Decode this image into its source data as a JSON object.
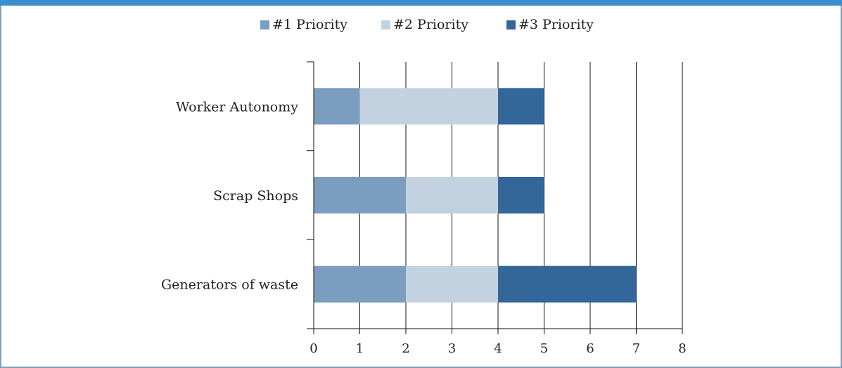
{
  "chart_data": {
    "type": "bar",
    "orientation": "horizontal",
    "stacked": true,
    "categories": [
      "Worker Autonomy",
      "Scrap Shops",
      "Generators of waste"
    ],
    "series": [
      {
        "name": "#1 Priority",
        "color": "#7b9dbf",
        "values": [
          1,
          2,
          2
        ]
      },
      {
        "name": "#2 Priority",
        "color": "#c3d2e1",
        "values": [
          3,
          2,
          2
        ]
      },
      {
        "name": "#3 Priority",
        "color": "#336699",
        "values": [
          1,
          1,
          3
        ]
      }
    ],
    "xlim": [
      0,
      8
    ],
    "xticks": [
      "0",
      "1",
      "2",
      "3",
      "4",
      "5",
      "6",
      "7",
      "8"
    ],
    "grid": "vertical",
    "legend_position": "top"
  },
  "colors": {
    "frame": "#7f9fbf",
    "top_band": "#3b8ed0"
  }
}
